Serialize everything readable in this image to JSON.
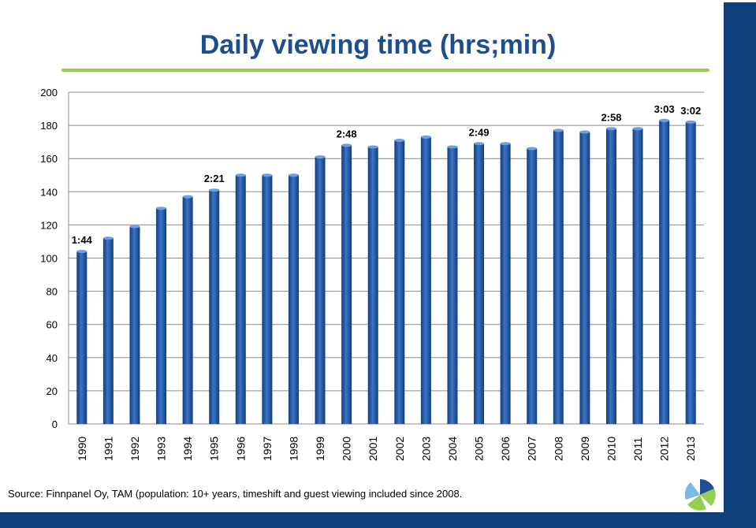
{
  "title": "Daily viewing time (hrs;min)",
  "source": "Source: Finnpanel Oy, TAM (population: 10+ years, timeshift  and guest viewing included since 2008.",
  "colors": {
    "bar": "#1f4e96",
    "bar_highlight": "#3a74c4",
    "band": "#0f3f7a",
    "title": "#1f4e8c",
    "title_line": "#92d050"
  },
  "icons": {
    "logo": "pie-logo-icon"
  },
  "chart_data": {
    "type": "bar",
    "title": "Daily viewing time (hrs;min)",
    "xlabel": "",
    "ylabel": "",
    "ylim": [
      0,
      200
    ],
    "yticks": [
      0,
      20,
      40,
      60,
      80,
      100,
      120,
      140,
      160,
      180,
      200
    ],
    "grid": true,
    "categories": [
      "1990",
      "1991",
      "1992",
      "1993",
      "1994",
      "1995",
      "1996",
      "1997",
      "1998",
      "1999",
      "2000",
      "2001",
      "2002",
      "2003",
      "2004",
      "2005",
      "2006",
      "2007",
      "2008",
      "2009",
      "2010",
      "2011",
      "2012",
      "2013"
    ],
    "values": [
      104,
      112,
      119,
      130,
      137,
      141,
      150,
      150,
      150,
      161,
      168,
      167,
      171,
      173,
      167,
      169,
      169,
      166,
      177,
      176,
      178,
      178,
      183,
      182
    ],
    "annotations": [
      {
        "category": "1990",
        "text": "1:44"
      },
      {
        "category": "1995",
        "text": "2:21"
      },
      {
        "category": "2000",
        "text": "2:48"
      },
      {
        "category": "2005",
        "text": "2:49"
      },
      {
        "category": "2010",
        "text": "2:58"
      },
      {
        "category": "2012",
        "text": "3:03"
      },
      {
        "category": "2013",
        "text": "3:02"
      }
    ]
  }
}
